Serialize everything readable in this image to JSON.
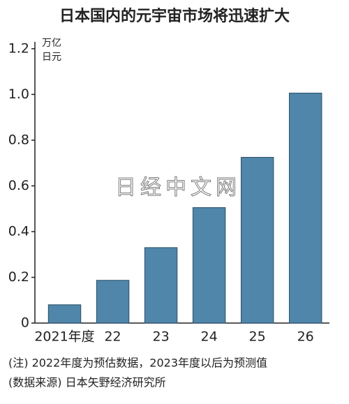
{
  "chart_data": {
    "type": "bar",
    "title": "日本国内的元宇宙市场将迅速扩大",
    "unit": [
      "万亿",
      "日元"
    ],
    "categories": [
      "2021年度",
      "22",
      "23",
      "24",
      "25",
      "26"
    ],
    "values": [
      0.08,
      0.187,
      0.33,
      0.505,
      0.725,
      1.006
    ],
    "color": "#4f86aa",
    "ylim": [
      0,
      1.23
    ],
    "yticks": [
      0,
      0.2,
      0.4,
      0.6,
      0.8,
      {
        "value": 1,
        "label": "1.0"
      },
      1.2
    ],
    "watermark": "日经中文网",
    "notes": [
      "(注) 2022年度为预估数据，2023年度以后为预测值",
      "(数据来源) 日本矢野经济研究所"
    ]
  }
}
